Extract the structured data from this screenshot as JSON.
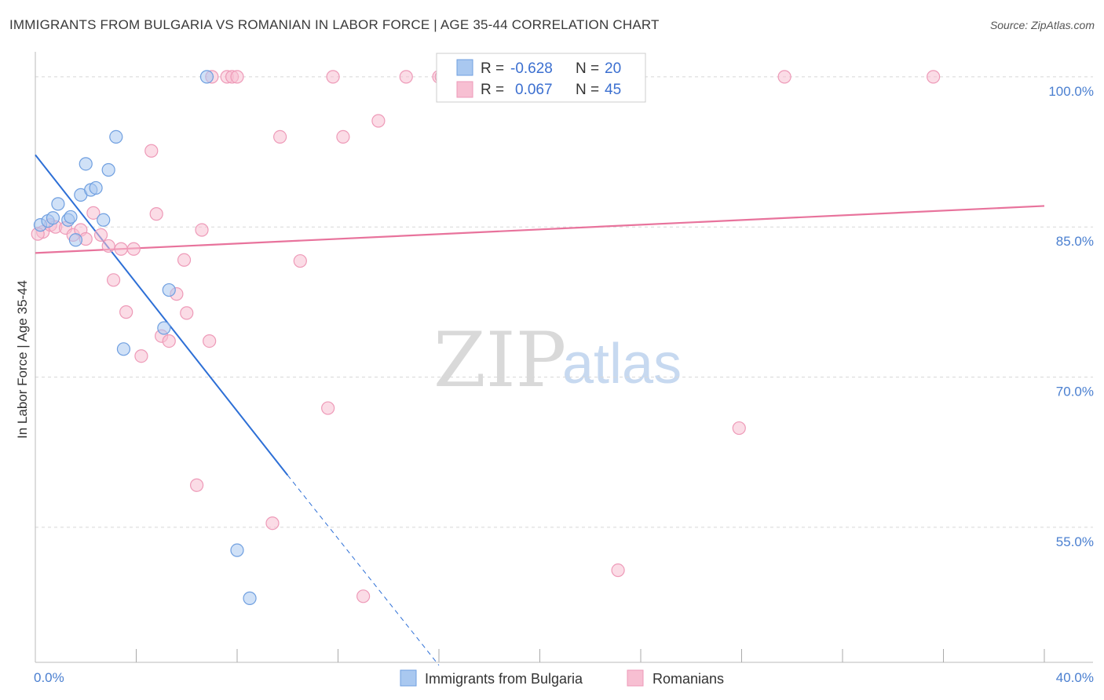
{
  "header": {
    "title": "IMMIGRANTS FROM BULGARIA VS ROMANIAN IN LABOR FORCE | AGE 35-44 CORRELATION CHART",
    "source": "Source: ZipAtlas.com"
  },
  "watermark": {
    "zip": "ZIP",
    "atlas": "atlas"
  },
  "legend": {
    "rows": [
      {
        "r_label": "R =",
        "r_value": "-0.628",
        "n_label": "N =",
        "n_value": "20"
      },
      {
        "r_label": "R =",
        "r_value": "0.067",
        "n_label": "N =",
        "n_value": "45"
      }
    ]
  },
  "bottom_legend": {
    "series1": "Immigrants from Bulgaria",
    "series2": "Romanians"
  },
  "colors": {
    "series1_fill": "#a9c8f0",
    "series1_stroke": "#6f9fe0",
    "series1_line": "#2d6fd6",
    "series2_fill": "#f7bfd2",
    "series2_stroke": "#ee9ab8",
    "series2_line": "#e8739c",
    "grid": "#d8d8d8",
    "tick_label": "#4a7fd0"
  },
  "chart_data": {
    "type": "scatter",
    "title": "IMMIGRANTS FROM BULGARIA VS ROMANIAN IN LABOR FORCE | AGE 35-44 CORRELATION CHART",
    "xlabel": "",
    "ylabel": "In Labor Force | Age 35-44",
    "xlim": [
      0,
      40
    ],
    "ylim": [
      41.5,
      102.5
    ],
    "x_tick_labels": [
      {
        "value": 0,
        "label": "0.0%"
      },
      {
        "value": 40,
        "label": "40.0%"
      }
    ],
    "x_minor_ticks": [
      4,
      8,
      12,
      16,
      20,
      24,
      28,
      32,
      36,
      40
    ],
    "y_ticks": [
      {
        "value": 100,
        "label": "100.0%"
      },
      {
        "value": 85,
        "label": "85.0%"
      },
      {
        "value": 70,
        "label": "70.0%"
      },
      {
        "value": 55,
        "label": "55.0%"
      }
    ],
    "series": [
      {
        "name": "Immigrants from Bulgaria",
        "R": -0.628,
        "N": 20,
        "points": [
          [
            0.2,
            85.2
          ],
          [
            0.5,
            85.6
          ],
          [
            0.7,
            85.9
          ],
          [
            0.9,
            87.3
          ],
          [
            1.3,
            85.7
          ],
          [
            1.4,
            86.0
          ],
          [
            1.6,
            83.7
          ],
          [
            1.8,
            88.2
          ],
          [
            2.0,
            91.3
          ],
          [
            2.2,
            88.7
          ],
          [
            2.4,
            88.9
          ],
          [
            2.7,
            85.7
          ],
          [
            2.9,
            90.7
          ],
          [
            3.2,
            94.0
          ],
          [
            3.5,
            72.8
          ],
          [
            5.1,
            74.9
          ],
          [
            5.3,
            78.7
          ],
          [
            6.8,
            100.0
          ],
          [
            8.0,
            52.7
          ],
          [
            8.5,
            47.9
          ]
        ],
        "trend": {
          "x0": 0.0,
          "y0": 92.2,
          "x1": 10.0,
          "y1": 60.2,
          "dashed_to_x": 16.0,
          "dashed_to_y": 41.2
        }
      },
      {
        "name": "Romanians",
        "R": 0.067,
        "N": 45,
        "points": [
          [
            0.3,
            84.5
          ],
          [
            0.6,
            85.2
          ],
          [
            0.8,
            85.0
          ],
          [
            1.2,
            84.9
          ],
          [
            1.5,
            84.2
          ],
          [
            1.8,
            84.7
          ],
          [
            2.0,
            83.8
          ],
          [
            2.3,
            86.4
          ],
          [
            2.6,
            84.2
          ],
          [
            2.9,
            83.1
          ],
          [
            3.1,
            79.7
          ],
          [
            3.4,
            82.8
          ],
          [
            3.6,
            76.5
          ],
          [
            3.9,
            82.8
          ],
          [
            4.2,
            72.1
          ],
          [
            4.6,
            92.6
          ],
          [
            4.8,
            86.3
          ],
          [
            5.0,
            74.1
          ],
          [
            5.3,
            73.6
          ],
          [
            5.6,
            78.3
          ],
          [
            5.9,
            81.7
          ],
          [
            6.0,
            76.4
          ],
          [
            6.4,
            59.2
          ],
          [
            6.6,
            84.7
          ],
          [
            6.9,
            73.6
          ],
          [
            7.0,
            100.0
          ],
          [
            7.6,
            100.0
          ],
          [
            7.8,
            100.0
          ],
          [
            8.0,
            100.0
          ],
          [
            9.4,
            55.4
          ],
          [
            9.7,
            94.0
          ],
          [
            10.5,
            81.6
          ],
          [
            11.6,
            66.9
          ],
          [
            11.8,
            100.0
          ],
          [
            12.2,
            94.0
          ],
          [
            13.0,
            48.1
          ],
          [
            13.6,
            95.6
          ],
          [
            14.7,
            100.0
          ],
          [
            16.0,
            100.0
          ],
          [
            16.1,
            100.0
          ],
          [
            23.1,
            50.7
          ],
          [
            27.9,
            64.9
          ],
          [
            29.7,
            100.0
          ],
          [
            35.6,
            100.0
          ],
          [
            0.1,
            84.3
          ]
        ],
        "trend": {
          "x0": 0.0,
          "y0": 82.4,
          "x1": 40.0,
          "y1": 87.1
        }
      }
    ]
  }
}
